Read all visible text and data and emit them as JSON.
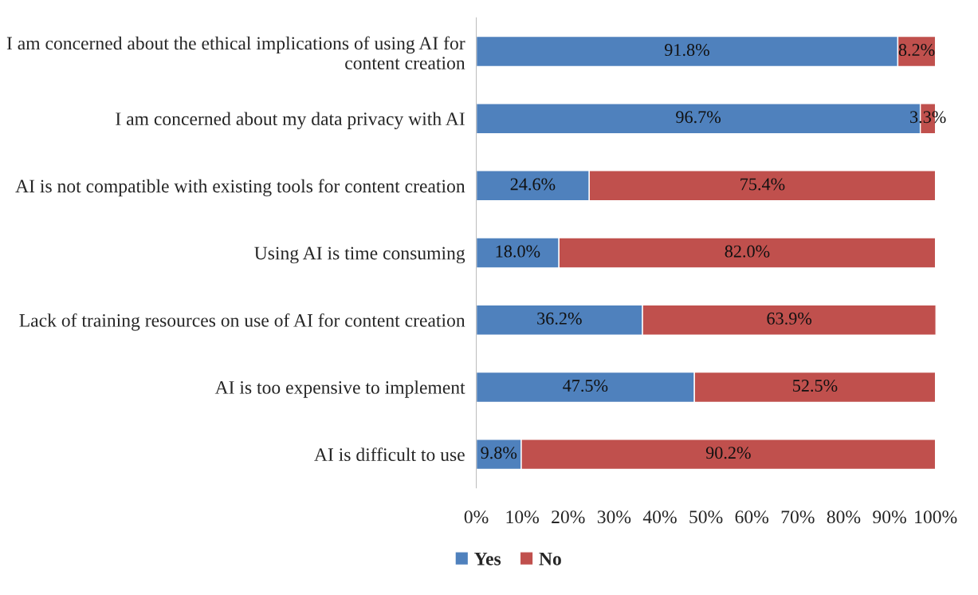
{
  "chart_data": {
    "type": "bar",
    "orientation": "horizontal",
    "stacked": true,
    "categories": [
      "I am concerned about the ethical implications of using AI for content creation",
      "I am concerned about my data privacy with AI",
      "AI is not compatible with existing tools for content creation",
      "Using AI is time consuming",
      "Lack of training resources on use of AI for content creation",
      "AI is too expensive to implement",
      "AI is difficult to use"
    ],
    "series": [
      {
        "name": "Yes",
        "color": "#4f81bd",
        "values": [
          91.8,
          96.7,
          24.6,
          18.0,
          36.2,
          47.5,
          9.8
        ],
        "value_labels": [
          "91.8%",
          "96.7%",
          "24.6%",
          "18.0%",
          "36.2%",
          "47.5%",
          "9.8%"
        ]
      },
      {
        "name": "No",
        "color": "#c0504d",
        "values": [
          8.2,
          3.3,
          75.4,
          82.0,
          63.9,
          52.5,
          90.2
        ],
        "value_labels": [
          "8.2%",
          "3.3%",
          "75.4%",
          "82.0%",
          "63.9%",
          "52.5%",
          "90.2%"
        ]
      }
    ],
    "xlim": [
      0,
      100.1
    ],
    "xticks": [
      {
        "value": 0,
        "label": "0%"
      },
      {
        "value": 10,
        "label": "10%"
      },
      {
        "value": 20,
        "label": "20%"
      },
      {
        "value": 30,
        "label": "30%"
      },
      {
        "value": 40,
        "label": "40%"
      },
      {
        "value": 50,
        "label": "50%"
      },
      {
        "value": 60,
        "label": "60%"
      },
      {
        "value": 70,
        "label": "70%"
      },
      {
        "value": 80,
        "label": "80%"
      },
      {
        "value": 90,
        "label": "90%"
      },
      {
        "value": 100,
        "label": "100%"
      }
    ],
    "grid": false,
    "legend": "bottom"
  }
}
